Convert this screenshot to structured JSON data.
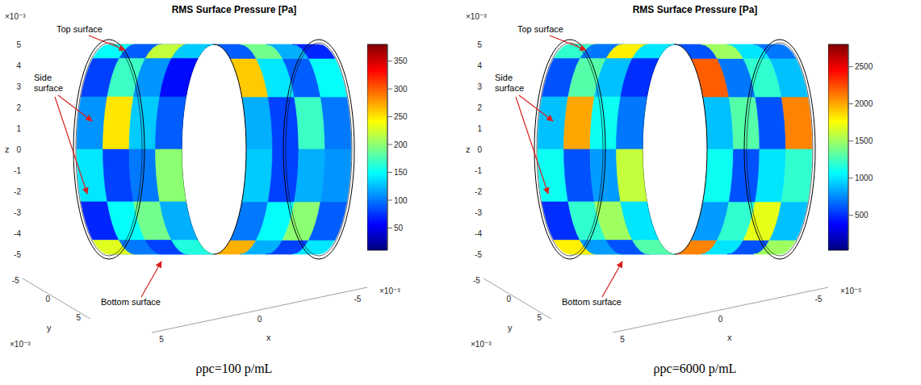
{
  "chart_data": [
    {
      "type": "heatmap",
      "title": "RMS Surface Pressure [Pa]",
      "subtitle": "ρpc=100 p/mL",
      "annotations": [
        "Top surface",
        "Side surface",
        "Bottom surface"
      ],
      "x_label": "x",
      "y_label": "y",
      "z_label": "z",
      "axis_scale_label": "×10⁻³",
      "xlim": [
        -5.5,
        5.5
      ],
      "xticks": [
        -5,
        0,
        5
      ],
      "ylim": [
        -5.5,
        5.5
      ],
      "yticks": [
        -5,
        0,
        5
      ],
      "zlim": [
        -5.5,
        5.5
      ],
      "zticks": [
        -5,
        -4,
        -3,
        -2,
        -1,
        0,
        1,
        2,
        3,
        4,
        5
      ],
      "colorbar": {
        "range": [
          10,
          380
        ],
        "ticks": [
          50,
          100,
          150,
          200,
          250,
          300,
          350
        ]
      },
      "cells": [
        [
          90,
          140,
          60,
          210,
          120,
          80,
          170,
          100
        ],
        [
          120,
          70,
          180,
          100,
          260,
          140,
          90,
          150
        ],
        [
          300,
          110,
          80,
          150,
          90,
          190,
          120,
          70
        ],
        [
          150,
          90,
          220,
          130,
          70,
          110,
          240,
          130
        ],
        [
          80,
          170,
          110,
          60,
          180,
          100,
          80,
          160
        ],
        [
          110,
          250,
          130,
          90,
          140,
          70,
          190,
          110
        ],
        [
          140,
          80,
          100,
          200,
          110,
          160,
          90,
          220
        ],
        [
          70,
          150,
          190,
          120,
          80,
          230,
          130,
          90
        ],
        [
          230,
          100,
          80,
          160,
          140,
          90,
          110,
          170
        ],
        [
          100,
          180,
          130,
          90,
          270,
          120,
          80,
          140
        ],
        [
          130,
          70,
          160,
          110,
          100,
          150,
          200,
          90
        ],
        [
          160,
          120,
          90,
          240,
          130,
          80,
          120,
          110
        ]
      ]
    },
    {
      "type": "heatmap",
      "title": "RMS Surface Pressure [Pa]",
      "subtitle": "ρpc=6000 p/mL",
      "annotations": [
        "Top surface",
        "Side surface",
        "Bottom surface"
      ],
      "x_label": "x",
      "y_label": "y",
      "z_label": "z",
      "axis_scale_label": "×10⁻³",
      "xlim": [
        -5.5,
        5.5
      ],
      "xticks": [
        -5,
        0,
        5
      ],
      "ylim": [
        -5.5,
        5.5
      ],
      "yticks": [
        -5,
        0,
        5
      ],
      "zlim": [
        -5.5,
        5.5
      ],
      "zticks": [
        -5,
        -4,
        -3,
        -2,
        -1,
        0,
        1,
        2,
        3,
        4,
        5
      ],
      "colorbar": {
        "range": [
          30,
          2800
        ],
        "ticks": [
          500,
          1000,
          1500,
          2000,
          2500
        ]
      },
      "cells": [
        [
          700,
          1100,
          500,
          1700,
          900,
          1300,
          600,
          2100
        ],
        [
          1000,
          600,
          1400,
          800,
          2200,
          700,
          1200,
          900
        ],
        [
          2300,
          900,
          700,
          1200,
          600,
          1500,
          1000,
          700
        ],
        [
          1200,
          700,
          1800,
          1000,
          500,
          900,
          2000,
          1300
        ],
        [
          600,
          1300,
          900,
          500,
          1500,
          800,
          700,
          1800
        ],
        [
          900,
          2000,
          1100,
          700,
          1200,
          600,
          1600,
          1000
        ],
        [
          1100,
          600,
          800,
          1600,
          900,
          1300,
          700,
          2400
        ],
        [
          500,
          1200,
          1500,
          1000,
          700,
          1900,
          1100,
          800
        ],
        [
          1800,
          800,
          600,
          1300,
          1100,
          700,
          900,
          2200
        ],
        [
          800,
          1400,
          1000,
          700,
          2100,
          1000,
          600,
          1500
        ],
        [
          1000,
          500,
          1300,
          900,
          800,
          1200,
          1700,
          900
        ],
        [
          1300,
          1000,
          700,
          1900,
          1100,
          600,
          1000,
          1200
        ]
      ]
    }
  ]
}
